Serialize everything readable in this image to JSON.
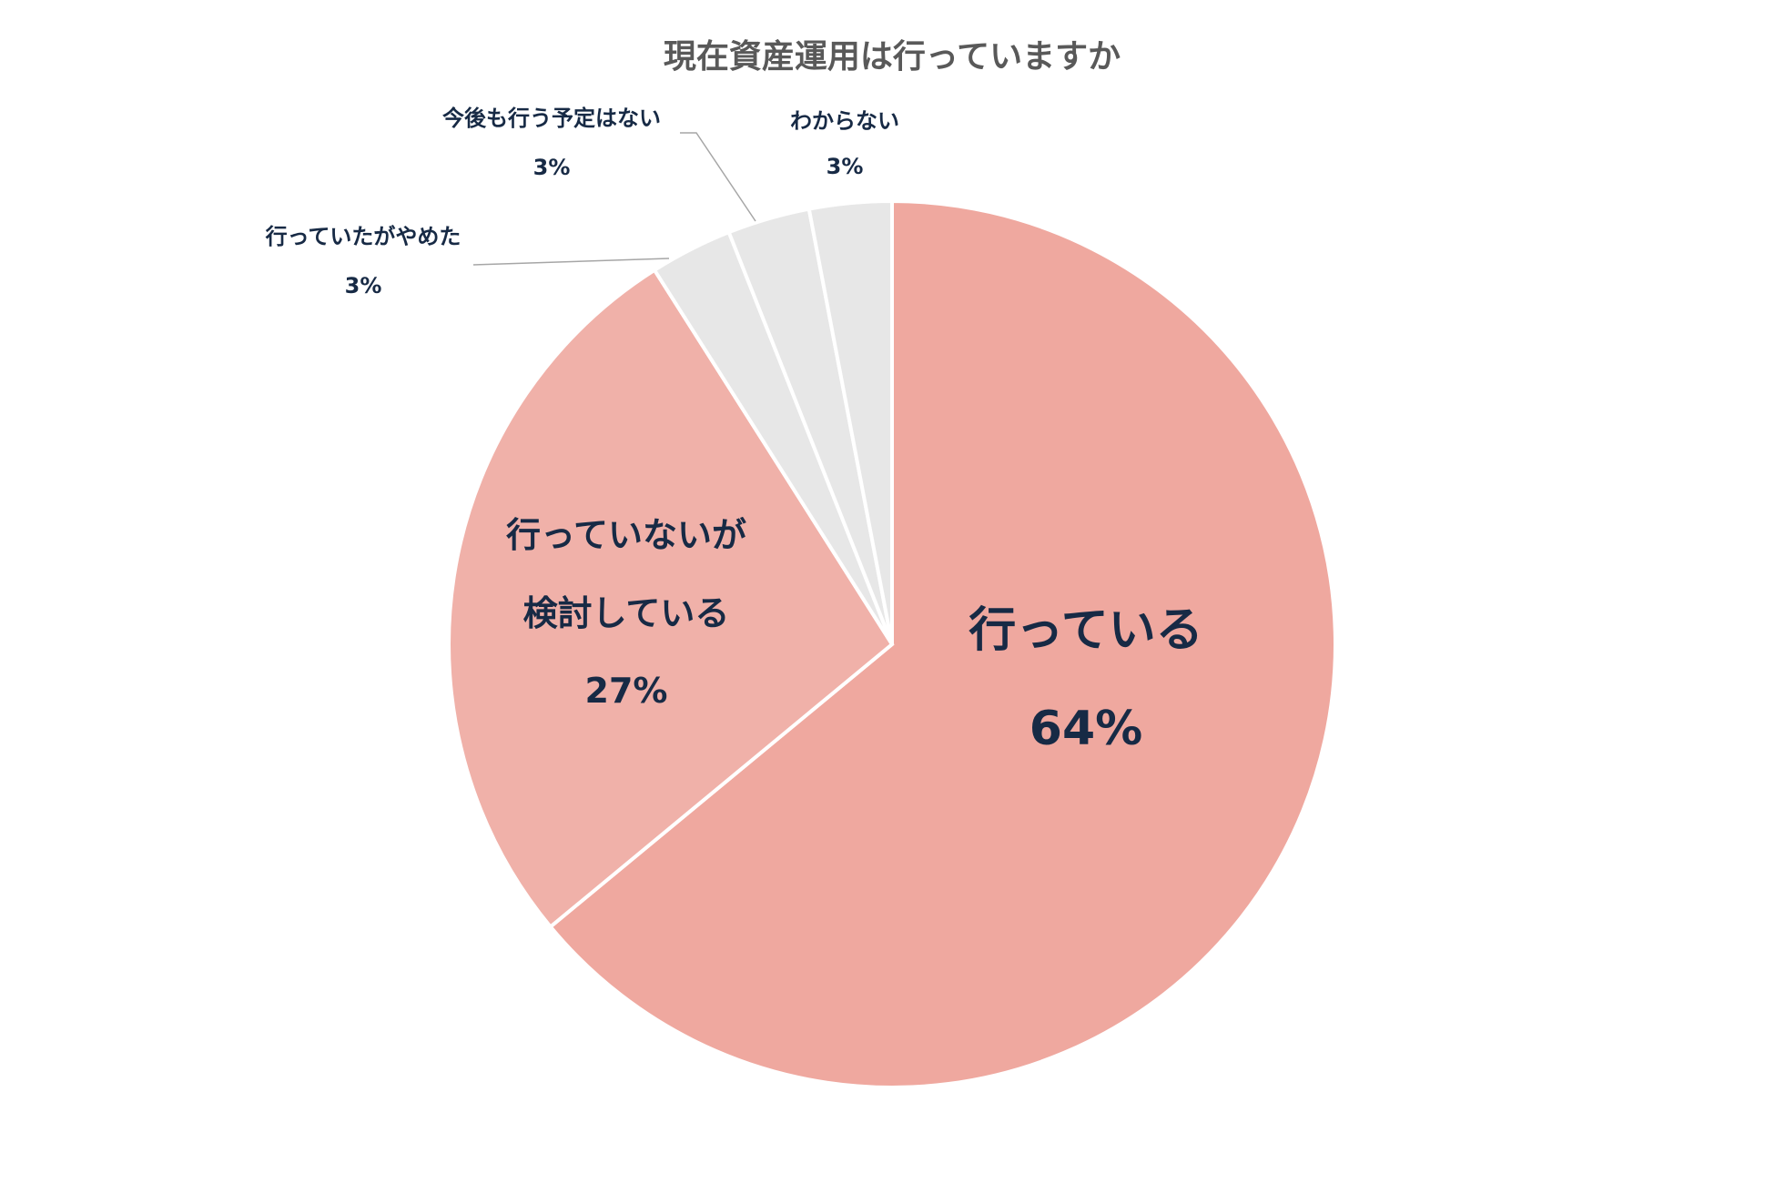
{
  "chart_data": {
    "type": "pie",
    "title": "現在資産運用は行っていますか",
    "slices": [
      {
        "label": "行っている",
        "label_lines": [
          "行っている"
        ],
        "value": 64,
        "value_label": "64%",
        "color": "#efa89f"
      },
      {
        "label": "行っていないが検討している",
        "label_lines": [
          "行っていないが",
          "検討している"
        ],
        "value": 27,
        "value_label": "27%",
        "color": "#f0b1a9"
      },
      {
        "label": "行っていたがやめた",
        "label_lines": [
          "行っていたがやめた"
        ],
        "value": 3,
        "value_label": "3%",
        "color": "#e7e7e7"
      },
      {
        "label": "今後も行う予定はない",
        "label_lines": [
          "今後も行う予定はない"
        ],
        "value": 3,
        "value_label": "3%",
        "color": "#e7e7e7"
      },
      {
        "label": "わからない",
        "label_lines": [
          "わからない"
        ],
        "value": 3,
        "value_label": "3%",
        "color": "#e7e7e7"
      }
    ],
    "start_angle": "12 o'clock",
    "direction": "clockwise",
    "legend": "none",
    "label_text_color": "#172a45",
    "title_color": "#595959",
    "leader_line_color": "#a6a6a6"
  }
}
